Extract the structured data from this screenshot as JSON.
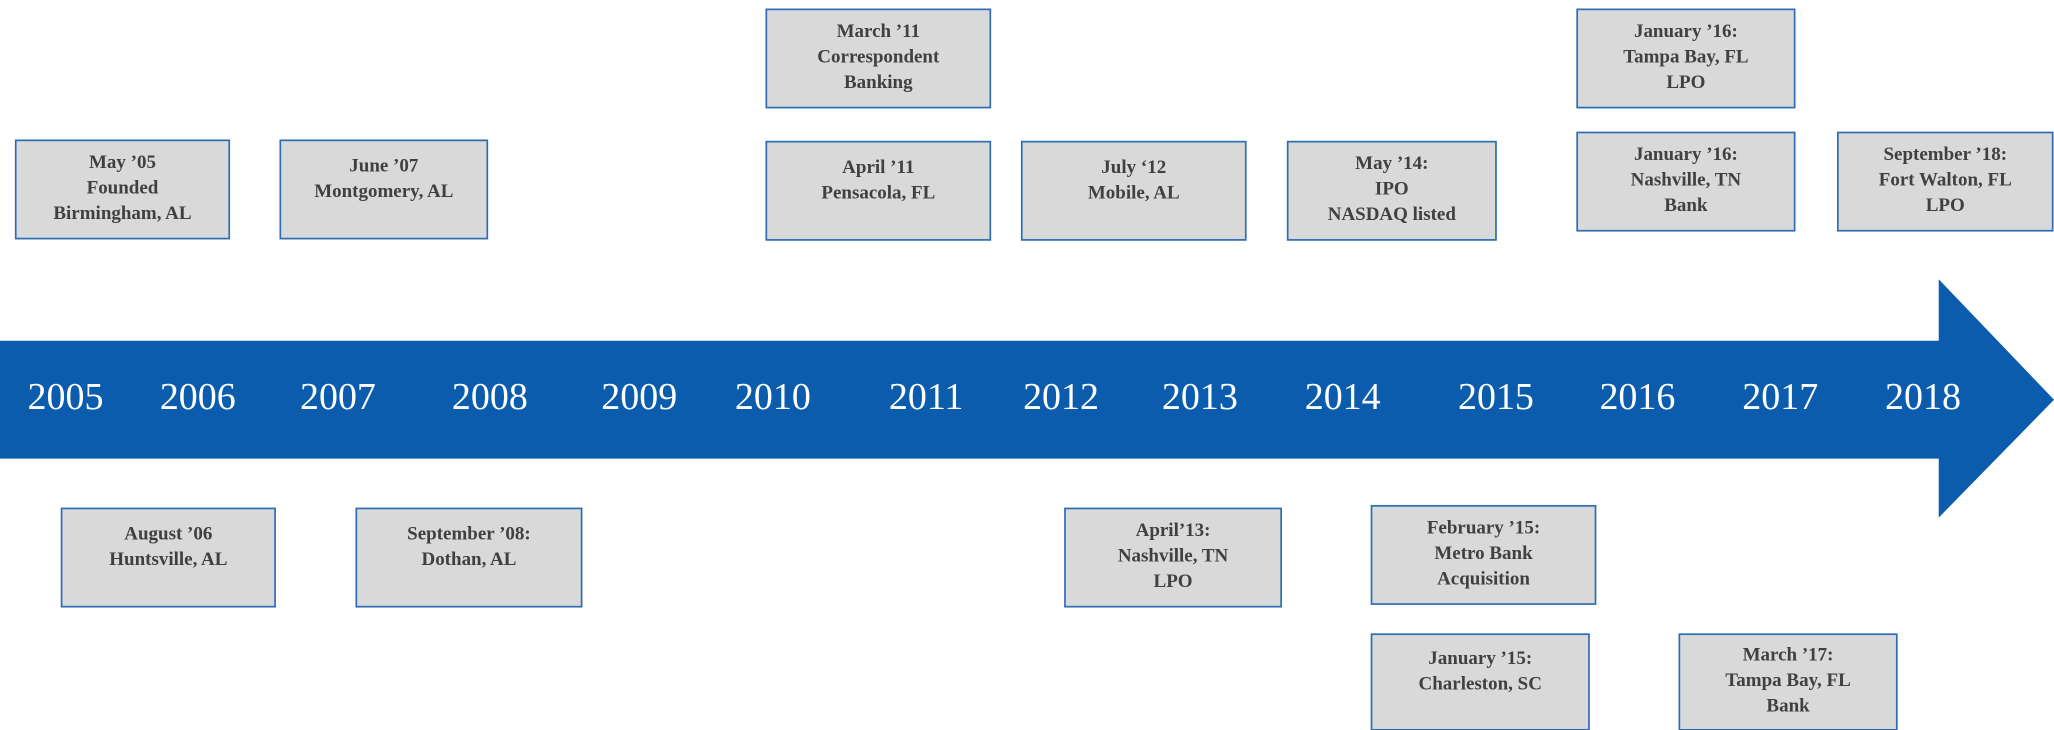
{
  "timeline": {
    "years": [
      "2005",
      "2006",
      "2007",
      "2008",
      "2009",
      "2010",
      "2011",
      "2012",
      "2013",
      "2014",
      "2015",
      "2016",
      "2017",
      "2018"
    ],
    "events": [
      {
        "lines": [
          "May ’05",
          "Founded",
          "Birmingham, AL"
        ]
      },
      {
        "lines": [
          "June ’07",
          "Montgomery, AL"
        ]
      },
      {
        "lines": [
          "March ’11",
          "Correspondent",
          "Banking"
        ]
      },
      {
        "lines": [
          "April ’11",
          "Pensacola, FL"
        ]
      },
      {
        "lines": [
          "July ‘12",
          "Mobile, AL"
        ]
      },
      {
        "lines": [
          "May ’14:",
          "IPO",
          "NASDAQ listed"
        ]
      },
      {
        "lines": [
          "January ’16:",
          "Tampa Bay, FL",
          "LPO"
        ]
      },
      {
        "lines": [
          "January ’16:",
          "Nashville, TN",
          "Bank"
        ]
      },
      {
        "lines": [
          "September ’18:",
          "Fort Walton, FL",
          "LPO"
        ]
      },
      {
        "lines": [
          "August ’06",
          "Huntsville, AL"
        ]
      },
      {
        "lines": [
          "September ’08:",
          "Dothan, AL"
        ]
      },
      {
        "lines": [
          "April’13:",
          "Nashville, TN",
          "LPO"
        ]
      },
      {
        "lines": [
          "February ’15:",
          "Metro Bank",
          "Acquisition"
        ]
      },
      {
        "lines": [
          "January ’15:",
          "Charleston, SC"
        ]
      },
      {
        "lines": [
          "March ’17:",
          "Tampa Bay, FL",
          "Bank"
        ]
      }
    ]
  }
}
